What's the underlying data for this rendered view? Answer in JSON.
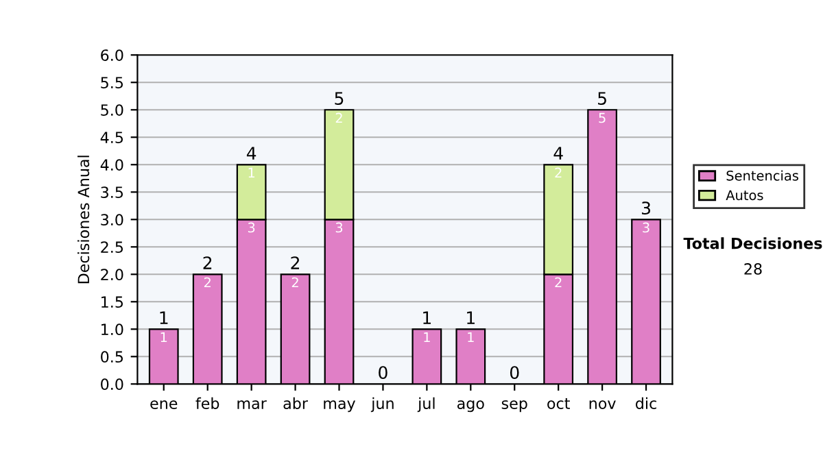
{
  "chart_data": {
    "type": "bar",
    "stacked": true,
    "ylabel": "Decisiones Anual",
    "categories": [
      "ene",
      "feb",
      "mar",
      "abr",
      "may",
      "jun",
      "jul",
      "ago",
      "sep",
      "oct",
      "nov",
      "dic"
    ],
    "series": [
      {
        "name": "Sentencias",
        "color": "#e07fc6",
        "values": [
          1,
          2,
          3,
          2,
          3,
          null,
          1,
          1,
          null,
          2,
          5,
          3
        ],
        "value_labels": [
          "1",
          "2",
          "3",
          "2",
          "3",
          null,
          "1",
          "1",
          null,
          "2",
          "5",
          "3"
        ]
      },
      {
        "name": "Autos",
        "color": "#d3ec9b",
        "values": [
          null,
          null,
          1,
          null,
          2,
          null,
          null,
          null,
          null,
          2,
          null,
          null
        ],
        "value_labels": [
          null,
          null,
          "1",
          null,
          "2",
          null,
          null,
          null,
          null,
          "2",
          null,
          null
        ]
      }
    ],
    "totals": [
      "1",
      "2",
      "4",
      "2",
      "5",
      "0",
      "1",
      "1",
      "0",
      "4",
      "5",
      "3"
    ],
    "ylim": [
      0,
      6
    ],
    "yticks": [
      {
        "value": 0,
        "label": "0.0"
      },
      {
        "value": 0.5,
        "label": "0.5"
      },
      {
        "value": 1,
        "label": "1.0"
      },
      {
        "value": 1.5,
        "label": "1.5"
      },
      {
        "value": 2,
        "label": "2.0"
      },
      {
        "value": 2.5,
        "label": "2.5"
      },
      {
        "value": 3,
        "label": "3.0"
      },
      {
        "value": 3.5,
        "label": "3.5"
      },
      {
        "value": 4,
        "label": "4.0"
      },
      {
        "value": 4.5,
        "label": "4.5"
      },
      {
        "value": 5,
        "label": "5.0"
      },
      {
        "value": 5.5,
        "label": "5.5"
      },
      {
        "value": 6,
        "label": "6.0"
      }
    ],
    "grid": "y",
    "legend": "right",
    "annotations": [
      "Total Decisiones",
      "28"
    ]
  }
}
